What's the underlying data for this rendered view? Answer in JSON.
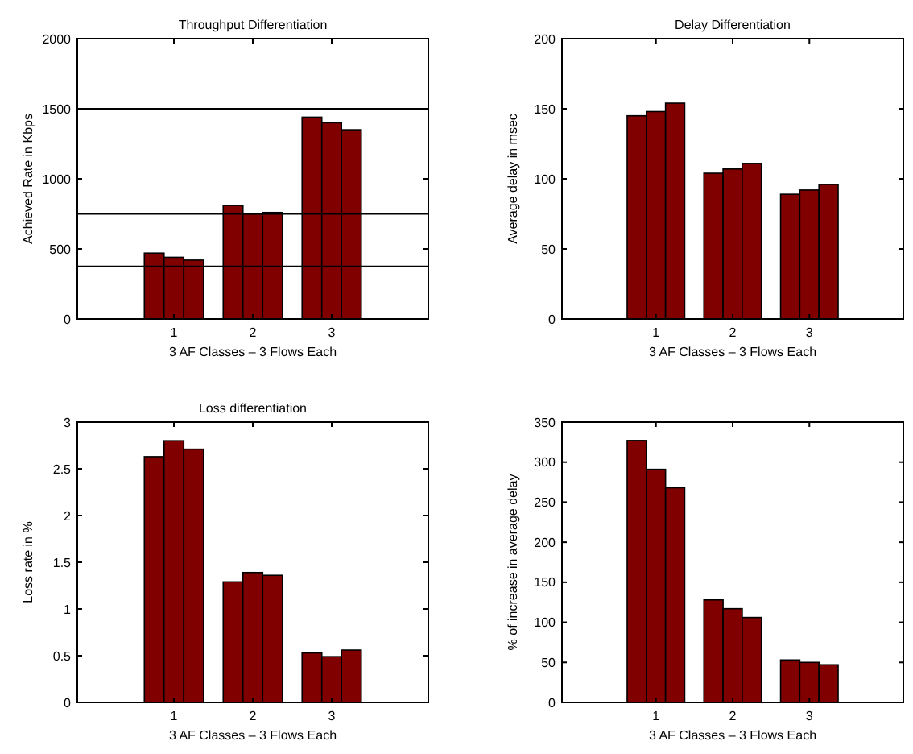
{
  "chart_data": [
    {
      "type": "bar",
      "title": "Throughput Differentiation",
      "xlabel": "3 AF Classes – 3 Flows Each",
      "ylabel": "Achieved Rate in Kbps",
      "categories": [
        "1",
        "2",
        "3"
      ],
      "series": [
        {
          "color": "#800000",
          "values": [
            470,
            810,
            1440
          ]
        },
        {
          "color": "#800000",
          "values": [
            440,
            750,
            1400
          ]
        },
        {
          "color": "#800000",
          "values": [
            420,
            760,
            1350
          ]
        }
      ],
      "ylim": [
        0,
        2000
      ],
      "yticks": [
        0,
        500,
        1000,
        1500,
        2000
      ],
      "ref_lines": [
        {
          "axis": "y",
          "value": 375
        },
        {
          "axis": "y",
          "value": 750
        },
        {
          "axis": "y",
          "value": 1500
        }
      ]
    },
    {
      "type": "bar",
      "title": "Delay Differentiation",
      "xlabel": "3 AF Classes – 3 Flows Each",
      "ylabel": "Average delay in msec",
      "categories": [
        "1",
        "2",
        "3"
      ],
      "series": [
        {
          "color": "#800000",
          "values": [
            145,
            104,
            89
          ]
        },
        {
          "color": "#800000",
          "values": [
            148,
            107,
            92
          ]
        },
        {
          "color": "#800000",
          "values": [
            154,
            111,
            96
          ]
        }
      ],
      "ylim": [
        0,
        200
      ],
      "yticks": [
        0,
        50,
        100,
        150,
        200
      ]
    },
    {
      "type": "bar",
      "title": "Loss differentiation",
      "xlabel": "3 AF Classes – 3 Flows Each",
      "ylabel": "Loss rate in %",
      "categories": [
        "1",
        "2",
        "3"
      ],
      "series": [
        {
          "color": "#800000",
          "values": [
            2.63,
            1.29,
            0.53
          ]
        },
        {
          "color": "#800000",
          "values": [
            2.8,
            1.39,
            0.49
          ]
        },
        {
          "color": "#800000",
          "values": [
            2.71,
            1.36,
            0.56
          ]
        }
      ],
      "ylim": [
        0,
        3
      ],
      "yticks": [
        0,
        0.5,
        1,
        1.5,
        2,
        2.5,
        3
      ]
    },
    {
      "type": "bar",
      "xlabel": "3 AF Classes – 3 Flows Each",
      "ylabel": "% of increase in average delay",
      "categories": [
        "1",
        "2",
        "3"
      ],
      "series": [
        {
          "color": "#800000",
          "values": [
            327,
            128,
            53
          ]
        },
        {
          "color": "#800000",
          "values": [
            291,
            117,
            50
          ]
        },
        {
          "color": "#800000",
          "values": [
            268,
            106,
            47
          ]
        }
      ],
      "ylim": [
        0,
        350
      ],
      "yticks": [
        0,
        50,
        100,
        150,
        200,
        250,
        300,
        350
      ]
    }
  ]
}
